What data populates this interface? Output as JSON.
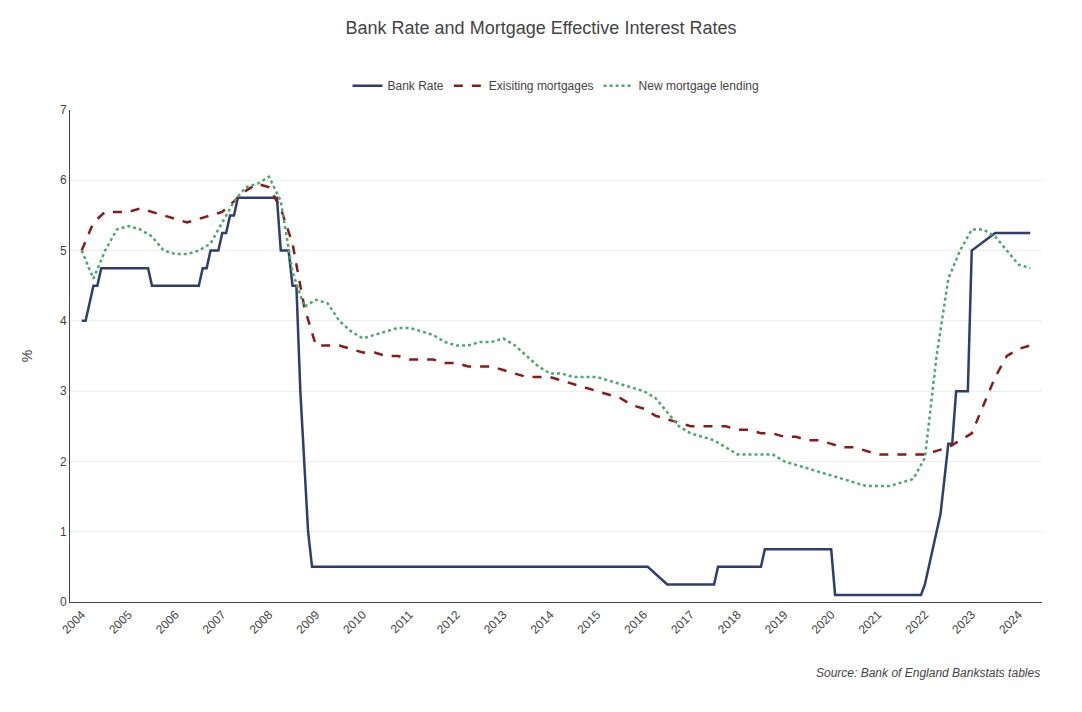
{
  "chart_data": {
    "type": "line",
    "title": "Bank Rate and Mortgage Effective Interest Rates",
    "ylabel": "%",
    "annotations": [
      "Source: Bank of England Bankstats tables"
    ],
    "xlim": [
      2003.75,
      2024.5
    ],
    "xticks": [
      2004,
      2005,
      2006,
      2007,
      2008,
      2009,
      2010,
      2011,
      2012,
      2013,
      2014,
      2015,
      2016,
      2017,
      2018,
      2019,
      2020,
      2021,
      2022,
      2023,
      2024
    ],
    "ylim": [
      0,
      7
    ],
    "yticks": [
      0,
      1,
      2,
      3,
      4,
      5,
      6,
      7
    ],
    "grid": true,
    "legend": "top",
    "series": [
      {
        "name": "Bank Rate",
        "color": "#2e3f6e",
        "line_style": "solid",
        "x": [
          2004.0,
          2004.083,
          2004.167,
          2004.25,
          2004.333,
          2004.417,
          2004.5,
          2004.583,
          2004.667,
          2004.75,
          2004.833,
          2004.917,
          2005.0,
          2005.083,
          2005.167,
          2005.25,
          2005.333,
          2005.417,
          2005.5,
          2005.583,
          2005.667,
          2005.75,
          2005.833,
          2005.917,
          2006.0,
          2006.083,
          2006.167,
          2006.25,
          2006.333,
          2006.417,
          2006.5,
          2006.583,
          2006.667,
          2006.75,
          2006.833,
          2006.917,
          2007.0,
          2007.083,
          2007.167,
          2007.25,
          2007.333,
          2007.417,
          2007.5,
          2007.583,
          2007.667,
          2007.75,
          2007.833,
          2007.917,
          2008.0,
          2008.083,
          2008.167,
          2008.25,
          2008.333,
          2008.417,
          2008.5,
          2008.583,
          2008.667,
          2008.75,
          2008.833,
          2008.917,
          2009.0,
          2009.083,
          2009.167,
          2009.25,
          2009.333,
          2009.417,
          2009.5,
          2009.583,
          2009.667,
          2009.75,
          2009.833,
          2009.917,
          2010.0,
          2010.5,
          2011.0,
          2011.5,
          2012.0,
          2012.5,
          2013.0,
          2013.5,
          2014.0,
          2014.5,
          2015.0,
          2015.5,
          2016.0,
          2016.083,
          2016.5,
          2016.583,
          2016.667,
          2016.75,
          2016.833,
          2016.917,
          2017.0,
          2017.5,
          2017.583,
          2017.667,
          2017.75,
          2017.833,
          2017.917,
          2018.0,
          2018.5,
          2018.583,
          2018.667,
          2018.75,
          2018.833,
          2018.917,
          2019.0,
          2019.5,
          2019.583,
          2019.667,
          2019.75,
          2019.833,
          2019.917,
          2020.0,
          2020.083,
          2020.167,
          2020.25,
          2020.5,
          2021.0,
          2021.5,
          2021.583,
          2021.667,
          2021.75,
          2021.833,
          2021.917,
          2022.0,
          2022.083,
          2022.167,
          2022.25,
          2022.333,
          2022.417,
          2022.5,
          2022.583,
          2022.667,
          2022.75,
          2022.833,
          2022.917,
          2023.0,
          2023.5,
          2024.0,
          2024.25
        ],
        "values": [
          4.0,
          4.0,
          4.25,
          4.5,
          4.5,
          4.75,
          4.75,
          4.75,
          4.75,
          4.75,
          4.75,
          4.75,
          4.75,
          4.75,
          4.75,
          4.75,
          4.75,
          4.75,
          4.5,
          4.5,
          4.5,
          4.5,
          4.5,
          4.5,
          4.5,
          4.5,
          4.5,
          4.5,
          4.5,
          4.5,
          4.5,
          4.75,
          4.75,
          5.0,
          5.0,
          5.0,
          5.25,
          5.25,
          5.5,
          5.5,
          5.75,
          5.75,
          5.75,
          5.75,
          5.75,
          5.75,
          5.75,
          5.75,
          5.75,
          5.75,
          5.75,
          5.0,
          5.0,
          5.0,
          4.5,
          4.5,
          3.0,
          2.0,
          1.0,
          0.5,
          0.5,
          0.5,
          0.5,
          0.5,
          0.5,
          0.5,
          0.5,
          0.5,
          0.5,
          0.5,
          0.5,
          0.5,
          0.5,
          0.5,
          0.5,
          0.5,
          0.5,
          0.5,
          0.5,
          0.5,
          0.5,
          0.5,
          0.5,
          0.5,
          0.5,
          0.5,
          0.25,
          0.25,
          0.25,
          0.25,
          0.25,
          0.25,
          0.25,
          0.25,
          0.5,
          0.5,
          0.5,
          0.5,
          0.5,
          0.5,
          0.5,
          0.75,
          0.75,
          0.75,
          0.75,
          0.75,
          0.75,
          0.75,
          0.75,
          0.75,
          0.75,
          0.75,
          0.75,
          0.75,
          0.1,
          0.1,
          0.1,
          0.1,
          0.1,
          0.1,
          0.1,
          0.1,
          0.1,
          0.1,
          0.1,
          0.25,
          0.5,
          0.75,
          1.0,
          1.25,
          1.75,
          2.25,
          2.25,
          3.0,
          3.0,
          3.0,
          3.0,
          5.0,
          5.25,
          5.25,
          5.25
        ]
      },
      {
        "name": "Exisiting mortgages",
        "color": "#8b1a1a",
        "line_style": "dashed",
        "x": [
          2004.0,
          2004.25,
          2004.5,
          2004.75,
          2005.0,
          2005.25,
          2005.5,
          2005.75,
          2006.0,
          2006.25,
          2006.5,
          2006.75,
          2007.0,
          2007.25,
          2007.5,
          2007.75,
          2008.0,
          2008.25,
          2008.5,
          2008.75,
          2009.0,
          2009.25,
          2009.5,
          2009.75,
          2010.0,
          2010.25,
          2010.5,
          2010.75,
          2011.0,
          2011.25,
          2011.5,
          2011.75,
          2012.0,
          2012.25,
          2012.5,
          2012.75,
          2013.0,
          2013.25,
          2013.5,
          2013.75,
          2014.0,
          2014.25,
          2014.5,
          2014.75,
          2015.0,
          2015.25,
          2015.5,
          2015.75,
          2016.0,
          2016.25,
          2016.5,
          2016.75,
          2017.0,
          2017.25,
          2017.5,
          2017.75,
          2018.0,
          2018.25,
          2018.5,
          2018.75,
          2019.0,
          2019.25,
          2019.5,
          2019.75,
          2020.0,
          2020.25,
          2020.5,
          2020.75,
          2021.0,
          2021.25,
          2021.5,
          2021.75,
          2022.0,
          2022.25,
          2022.5,
          2022.75,
          2023.0,
          2023.25,
          2023.5,
          2023.75,
          2024.0,
          2024.25
        ],
        "values": [
          5.0,
          5.4,
          5.55,
          5.55,
          5.55,
          5.6,
          5.55,
          5.5,
          5.45,
          5.4,
          5.45,
          5.5,
          5.55,
          5.7,
          5.85,
          5.95,
          5.9,
          5.6,
          5.1,
          4.2,
          3.65,
          3.65,
          3.65,
          3.6,
          3.55,
          3.55,
          3.5,
          3.5,
          3.45,
          3.45,
          3.45,
          3.4,
          3.4,
          3.35,
          3.35,
          3.35,
          3.3,
          3.25,
          3.2,
          3.2,
          3.2,
          3.15,
          3.1,
          3.05,
          3.0,
          2.95,
          2.9,
          2.8,
          2.75,
          2.65,
          2.6,
          2.55,
          2.5,
          2.5,
          2.5,
          2.5,
          2.45,
          2.45,
          2.4,
          2.4,
          2.35,
          2.35,
          2.3,
          2.3,
          2.25,
          2.2,
          2.2,
          2.15,
          2.1,
          2.1,
          2.1,
          2.1,
          2.1,
          2.15,
          2.2,
          2.3,
          2.4,
          2.8,
          3.2,
          3.5,
          3.6,
          3.65
        ]
      },
      {
        "name": "New mortgage lending",
        "color": "#4aaa6e",
        "line_style": "dotted",
        "x": [
          2004.0,
          2004.25,
          2004.5,
          2004.75,
          2005.0,
          2005.25,
          2005.5,
          2005.75,
          2006.0,
          2006.25,
          2006.5,
          2006.75,
          2007.0,
          2007.25,
          2007.5,
          2007.75,
          2008.0,
          2008.25,
          2008.5,
          2008.75,
          2009.0,
          2009.25,
          2009.5,
          2009.75,
          2010.0,
          2010.25,
          2010.5,
          2010.75,
          2011.0,
          2011.25,
          2011.5,
          2011.75,
          2012.0,
          2012.25,
          2012.5,
          2012.75,
          2013.0,
          2013.25,
          2013.5,
          2013.75,
          2014.0,
          2014.25,
          2014.5,
          2014.75,
          2015.0,
          2015.25,
          2015.5,
          2015.75,
          2016.0,
          2016.25,
          2016.5,
          2016.75,
          2017.0,
          2017.25,
          2017.5,
          2017.75,
          2018.0,
          2018.25,
          2018.5,
          2018.75,
          2019.0,
          2019.25,
          2019.5,
          2019.75,
          2020.0,
          2020.25,
          2020.5,
          2020.75,
          2021.0,
          2021.25,
          2021.5,
          2021.75,
          2022.0,
          2022.25,
          2022.5,
          2022.75,
          2023.0,
          2023.25,
          2023.5,
          2023.75,
          2024.0,
          2024.25
        ],
        "values": [
          5.0,
          4.6,
          5.0,
          5.3,
          5.35,
          5.3,
          5.2,
          5.0,
          4.95,
          4.95,
          5.0,
          5.1,
          5.4,
          5.7,
          5.9,
          5.95,
          6.05,
          5.7,
          4.7,
          4.2,
          4.3,
          4.25,
          4.0,
          3.85,
          3.75,
          3.8,
          3.85,
          3.9,
          3.9,
          3.85,
          3.8,
          3.7,
          3.65,
          3.65,
          3.7,
          3.7,
          3.75,
          3.65,
          3.5,
          3.35,
          3.25,
          3.25,
          3.2,
          3.2,
          3.2,
          3.15,
          3.1,
          3.05,
          3.0,
          2.9,
          2.7,
          2.5,
          2.4,
          2.35,
          2.3,
          2.2,
          2.1,
          2.1,
          2.1,
          2.1,
          2.0,
          1.95,
          1.9,
          1.85,
          1.8,
          1.75,
          1.7,
          1.65,
          1.65,
          1.65,
          1.7,
          1.75,
          2.05,
          3.5,
          4.6,
          5.0,
          5.3,
          5.3,
          5.2,
          5.0,
          4.8,
          4.75
        ]
      }
    ]
  }
}
